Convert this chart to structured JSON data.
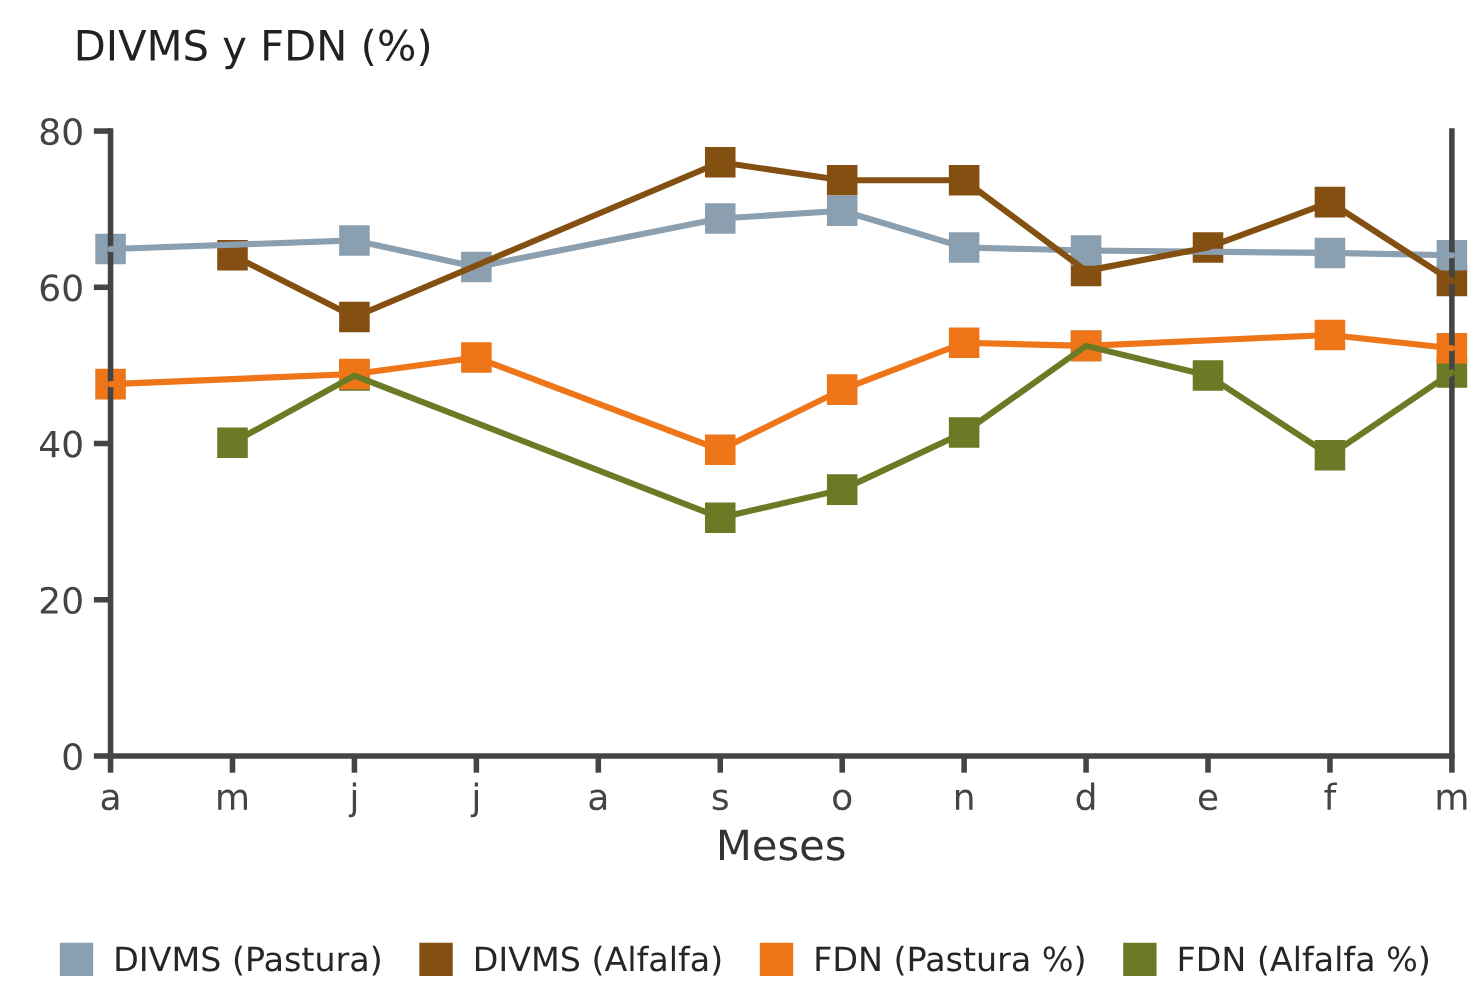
{
  "chart_data": {
    "type": "line",
    "ylabel": "DIVMS y FDN (%)",
    "xlabel": "Meses",
    "categories": [
      "a",
      "m",
      "j",
      "j",
      "a",
      "s",
      "o",
      "n",
      "d",
      "e",
      "f",
      "m"
    ],
    "series": [
      {
        "name": "DIVMS (Pastura)",
        "color": "#8a9fb0",
        "values": [
          64.9,
          null,
          66.0,
          62.6,
          null,
          68.8,
          69.8,
          65.1,
          64.7,
          null,
          64.4,
          64.1
        ]
      },
      {
        "name": "DIVMS (Alfalfa)",
        "color": "#845012",
        "values": [
          null,
          64.1,
          56.2,
          null,
          null,
          76.0,
          73.7,
          73.7,
          62.1,
          65.1,
          70.9,
          60.8
        ]
      },
      {
        "name": "FDN (Pastura %)",
        "color": "#ee7518",
        "values": [
          47.6,
          null,
          48.9,
          51.0,
          null,
          39.2,
          46.9,
          52.9,
          52.5,
          null,
          53.9,
          52.2
        ]
      },
      {
        "name": "FDN (Alfalfa %)",
        "color": "#6b7a24",
        "values": [
          null,
          40.1,
          48.7,
          null,
          null,
          30.5,
          34.1,
          41.4,
          52.5,
          48.7,
          38.5,
          49.1
        ]
      }
    ],
    "ylim": [
      0,
      80
    ],
    "yticks": [
      0,
      20,
      40,
      60,
      80
    ],
    "grid": false,
    "legend": "bottom",
    "marker": "square",
    "line_style": "solid"
  }
}
